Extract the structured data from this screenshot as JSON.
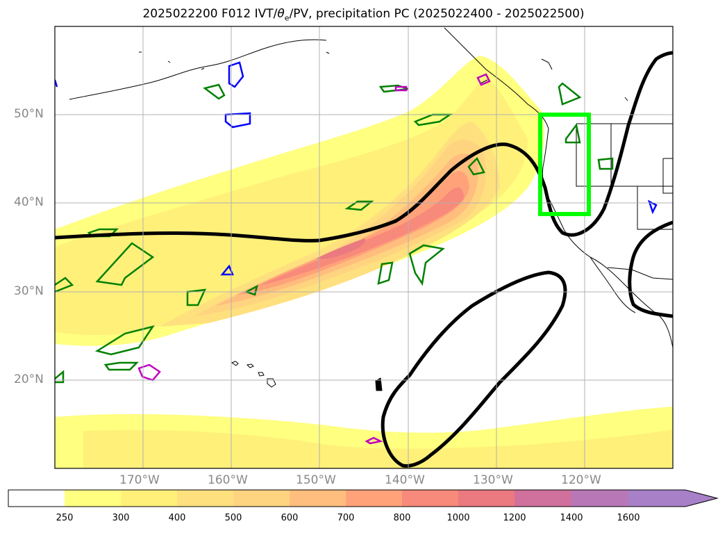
{
  "title": {
    "prefix": "2025022200 F012 IVT/",
    "theta": "θ",
    "sub": "e",
    "suffix": "/PV, precipitation PC (2025022400 - 2025022500)"
  },
  "map": {
    "lon_range": [
      -180,
      -110
    ],
    "lat_range": [
      10,
      60
    ],
    "lon_labels": [
      "170°W",
      "160°W",
      "150°W",
      "140°W",
      "130°W",
      "120°W"
    ],
    "lat_labels": [
      "50°N",
      "40°N",
      "30°N",
      "20°N"
    ],
    "box": {
      "lon": [
        -125,
        -119.5
      ],
      "lat": [
        38.7,
        50
      ],
      "color": "#00ff00"
    },
    "colors": {
      "contour_jet": "#000000",
      "pv_green": "#008000",
      "pv_blue": "#0000ff",
      "pv_magenta": "#c000c0",
      "coast": "#000000"
    }
  },
  "colorbar": {
    "levels": [
      "250",
      "300",
      "400",
      "500",
      "600",
      "700",
      "800",
      "1000",
      "1200",
      "1400",
      "1600"
    ],
    "colors": [
      "#ffffff",
      "#ffff80",
      "#fff07a",
      "#ffe07e",
      "#ffd480",
      "#ffbe7e",
      "#ffa27a",
      "#f78a7a",
      "#ea7a80",
      "#d0709c",
      "#b878b8",
      "#a880c8"
    ]
  }
}
